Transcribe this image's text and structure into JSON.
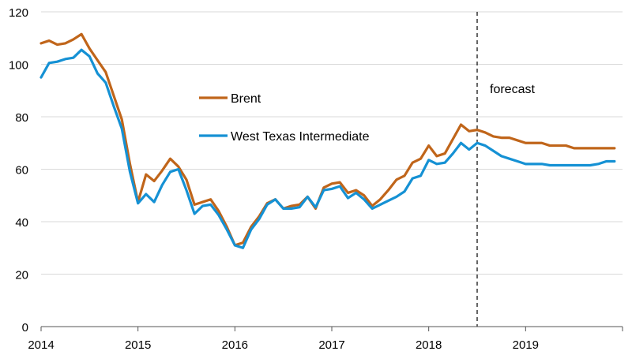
{
  "chart_data": {
    "type": "line",
    "title": "",
    "xlabel": "",
    "ylabel": "",
    "xlim": [
      2014,
      2020
    ],
    "ylim": [
      0,
      120
    ],
    "y_ticks": [
      0,
      20,
      40,
      60,
      80,
      100,
      120
    ],
    "x_ticks": [
      {
        "value": 2014,
        "label": "2014"
      },
      {
        "value": 2015,
        "label": "2015"
      },
      {
        "value": 2016,
        "label": "2016"
      },
      {
        "value": 2017,
        "label": "2017"
      },
      {
        "value": 2018,
        "label": "2018"
      },
      {
        "value": 2019,
        "label": "2019"
      }
    ],
    "grid": "horizontal",
    "legend_position": "center-left",
    "forecast_start": 2018.5,
    "forecast_label": "forecast",
    "series": [
      {
        "name": "Brent",
        "color": "#c0651a",
        "x": [
          2014.0,
          2014.083,
          2014.167,
          2014.25,
          2014.333,
          2014.417,
          2014.5,
          2014.583,
          2014.667,
          2014.75,
          2014.833,
          2014.917,
          2015.0,
          2015.083,
          2015.167,
          2015.25,
          2015.333,
          2015.417,
          2015.5,
          2015.583,
          2015.667,
          2015.75,
          2015.833,
          2015.917,
          2016.0,
          2016.083,
          2016.167,
          2016.25,
          2016.333,
          2016.417,
          2016.5,
          2016.583,
          2016.667,
          2016.75,
          2016.833,
          2016.917,
          2017.0,
          2017.083,
          2017.167,
          2017.25,
          2017.333,
          2017.417,
          2017.5,
          2017.583,
          2017.667,
          2017.75,
          2017.833,
          2017.917,
          2018.0,
          2018.083,
          2018.167,
          2018.25,
          2018.333,
          2018.417,
          2018.5,
          2018.583,
          2018.667,
          2018.75,
          2018.833,
          2018.917,
          2019.0,
          2019.083,
          2019.167,
          2019.25,
          2019.333,
          2019.417,
          2019.5,
          2019.583,
          2019.667,
          2019.75,
          2019.833,
          2019.917
        ],
        "values": [
          108,
          109,
          107.5,
          108,
          109.5,
          111.5,
          106,
          101.5,
          97,
          88,
          79,
          62,
          47.5,
          58,
          55.5,
          59.5,
          64,
          61,
          56,
          46.5,
          47.5,
          48.5,
          44,
          38,
          31,
          32,
          38,
          42,
          47,
          48.5,
          45,
          46,
          46.5,
          49.5,
          45,
          53,
          54.5,
          55,
          51,
          52,
          50,
          46,
          48.5,
          52,
          56,
          57.5,
          62.5,
          64,
          69,
          65,
          66,
          71.5,
          77,
          74.5,
          75,
          74,
          72.5,
          72,
          72,
          71,
          70,
          70,
          70,
          69,
          69,
          69,
          68,
          68,
          68,
          68,
          68,
          68
        ]
      },
      {
        "name": "West Texas Intermediate",
        "color": "#1591d4",
        "x": [
          2014.0,
          2014.083,
          2014.167,
          2014.25,
          2014.333,
          2014.417,
          2014.5,
          2014.583,
          2014.667,
          2014.75,
          2014.833,
          2014.917,
          2015.0,
          2015.083,
          2015.167,
          2015.25,
          2015.333,
          2015.417,
          2015.5,
          2015.583,
          2015.667,
          2015.75,
          2015.833,
          2015.917,
          2016.0,
          2016.083,
          2016.167,
          2016.25,
          2016.333,
          2016.417,
          2016.5,
          2016.583,
          2016.667,
          2016.75,
          2016.833,
          2016.917,
          2017.0,
          2017.083,
          2017.167,
          2017.25,
          2017.333,
          2017.417,
          2017.5,
          2017.583,
          2017.667,
          2017.75,
          2017.833,
          2017.917,
          2018.0,
          2018.083,
          2018.167,
          2018.25,
          2018.333,
          2018.417,
          2018.5,
          2018.583,
          2018.667,
          2018.75,
          2018.833,
          2018.917,
          2019.0,
          2019.083,
          2019.167,
          2019.25,
          2019.333,
          2019.417,
          2019.5,
          2019.583,
          2019.667,
          2019.75,
          2019.833,
          2019.917
        ],
        "values": [
          95,
          100.5,
          101,
          102,
          102.5,
          105.5,
          103,
          96.5,
          93,
          84,
          75.5,
          59,
          47,
          50.5,
          47.5,
          54,
          59,
          60,
          52,
          43,
          46,
          46.5,
          42.5,
          37,
          31,
          30,
          37,
          41,
          46.5,
          48.5,
          45,
          45,
          45.5,
          49.5,
          45.5,
          52,
          52.5,
          53.5,
          49,
          51,
          48.5,
          45,
          46.5,
          48,
          49.5,
          51.5,
          56.5,
          57.5,
          63.5,
          62,
          62.5,
          66,
          70,
          67.5,
          70,
          69,
          67,
          65,
          64,
          63,
          62,
          62,
          62,
          61.5,
          61.5,
          61.5,
          61.5,
          61.5,
          61.5,
          62,
          63,
          63
        ]
      }
    ]
  }
}
